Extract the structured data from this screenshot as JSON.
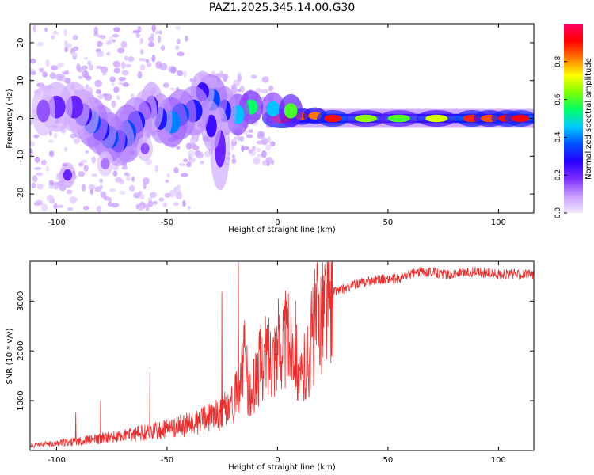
{
  "title": "PAZ1.2025.345.14.00.G30",
  "chart_data": [
    {
      "type": "heatmap",
      "panel": "spectrogram",
      "xlabel": "Height of straight line (km)",
      "ylabel": "Frequency (Hz)",
      "xlim": [
        -112,
        116
      ],
      "ylim": [
        -25,
        25
      ],
      "xticks": [
        -100,
        -50,
        0,
        50,
        100
      ],
      "yticks": [
        -20,
        -10,
        0,
        10,
        20
      ],
      "colorbar": {
        "label": "Normalized spectral amplitude",
        "range": [
          0,
          1
        ],
        "ticks": [
          0.0,
          0.2,
          0.4,
          0.6,
          0.8
        ],
        "tick_labels": [
          "0.0",
          "0.2",
          "0.4",
          "0.6",
          "0.8"
        ],
        "colormap": [
          "#f4e9ff",
          "#c79bff",
          "#7a2cff",
          "#2600ff",
          "#0050ff",
          "#00c8ff",
          "#00ff6a",
          "#7dff00",
          "#ffff00",
          "#ff7a00",
          "#ff0000",
          "#ff0066"
        ]
      },
      "blobs": [
        {
          "x": 2,
          "y": 0,
          "w": 5,
          "h": 1.2,
          "v": 0.95
        },
        {
          "x": 11,
          "y": 0.5,
          "w": 3,
          "h": 1.0,
          "v": 0.85
        },
        {
          "x": 17,
          "y": 0.7,
          "w": 3,
          "h": 1.0,
          "v": 0.82
        },
        {
          "x": 25,
          "y": 0,
          "w": 4,
          "h": 1.0,
          "v": 0.9
        },
        {
          "x": 40,
          "y": 0,
          "w": 5,
          "h": 1.0,
          "v": 0.65
        },
        {
          "x": 55,
          "y": 0,
          "w": 5,
          "h": 1.0,
          "v": 0.6
        },
        {
          "x": 72,
          "y": 0,
          "w": 5,
          "h": 1.0,
          "v": 0.7
        },
        {
          "x": 88,
          "y": 0,
          "w": 4,
          "h": 1.0,
          "v": 0.88
        },
        {
          "x": 96,
          "y": 0,
          "w": 4,
          "h": 1.0,
          "v": 0.85
        },
        {
          "x": 104,
          "y": 0,
          "w": 4,
          "h": 1.0,
          "v": 0.9
        },
        {
          "x": 110,
          "y": 0,
          "w": 4,
          "h": 1.0,
          "v": 0.92
        },
        {
          "x": -2,
          "y": 2.5,
          "w": 3,
          "h": 2.0,
          "v": 0.45
        },
        {
          "x": 6,
          "y": 2,
          "w": 3,
          "h": 2.0,
          "v": 0.6
        },
        {
          "x": -12,
          "y": 3,
          "w": 3,
          "h": 2.0,
          "v": 0.55
        },
        {
          "x": -18,
          "y": 1,
          "w": 3,
          "h": 2.5,
          "v": 0.45
        },
        {
          "x": -24,
          "y": 2,
          "w": 3,
          "h": 3.0,
          "v": 0.3
        },
        {
          "x": -30,
          "y": 5,
          "w": 4,
          "h": 3.0,
          "v": 0.35
        },
        {
          "x": -34,
          "y": 7,
          "w": 3,
          "h": 2.5,
          "v": 0.25
        },
        {
          "x": -26,
          "y": -8,
          "w": 2.5,
          "h": 5.0,
          "v": 0.2
        },
        {
          "x": -30,
          "y": -2,
          "w": 2.5,
          "h": 3.0,
          "v": 0.25
        },
        {
          "x": -38,
          "y": 2,
          "w": 4,
          "h": 3.0,
          "v": 0.3
        },
        {
          "x": -44,
          "y": 1,
          "w": 4,
          "h": 3.0,
          "v": 0.35
        },
        {
          "x": -48,
          "y": -1,
          "w": 4,
          "h": 3.0,
          "v": 0.4
        },
        {
          "x": -53,
          "y": 0,
          "w": 3,
          "h": 3.0,
          "v": 0.3
        },
        {
          "x": -57,
          "y": 3,
          "w": 3,
          "h": 3.0,
          "v": 0.25
        },
        {
          "x": -60,
          "y": 2,
          "w": 3,
          "h": 2.5,
          "v": 0.2
        },
        {
          "x": -64,
          "y": -1,
          "w": 4,
          "h": 3.0,
          "v": 0.3
        },
        {
          "x": -68,
          "y": -4,
          "w": 4,
          "h": 3.5,
          "v": 0.35
        },
        {
          "x": -72,
          "y": -6,
          "w": 4,
          "h": 3.0,
          "v": 0.3
        },
        {
          "x": -76,
          "y": -5,
          "w": 4,
          "h": 3.0,
          "v": 0.35
        },
        {
          "x": -80,
          "y": -3,
          "w": 4,
          "h": 3.0,
          "v": 0.3
        },
        {
          "x": -84,
          "y": -1,
          "w": 4,
          "h": 3.0,
          "v": 0.35
        },
        {
          "x": -88,
          "y": 1,
          "w": 4,
          "h": 3.0,
          "v": 0.25
        },
        {
          "x": -92,
          "y": 3,
          "w": 4,
          "h": 3.0,
          "v": 0.2
        },
        {
          "x": -100,
          "y": 3,
          "w": 4,
          "h": 3.0,
          "v": 0.2
        },
        {
          "x": -106,
          "y": 2,
          "w": 3,
          "h": 3.0,
          "v": 0.15
        },
        {
          "x": -95,
          "y": -15,
          "w": 2,
          "h": 1.5,
          "v": 0.2
        },
        {
          "x": -78,
          "y": -12,
          "w": 2,
          "h": 1.5,
          "v": 0.12
        },
        {
          "x": -60,
          "y": -8,
          "w": 2,
          "h": 1.5,
          "v": 0.15
        }
      ]
    },
    {
      "type": "line",
      "panel": "snr",
      "xlabel": "Height of straight line (km)",
      "ylabel": "SNR (10 * v/v)",
      "xlim": [
        -112,
        116
      ],
      "ylim": [
        0,
        3800
      ],
      "xticks": [
        -100,
        -50,
        0,
        50,
        100
      ],
      "yticks": [
        1000,
        2000,
        3000
      ],
      "series": [
        {
          "name": "SNR",
          "color": "#e83030",
          "x": [
            -112,
            -100,
            -90,
            -80,
            -70,
            -60,
            -50,
            -45,
            -40,
            -35,
            -30,
            -25,
            -20,
            -17,
            -15,
            -12,
            -10,
            -8,
            -5,
            -2,
            0,
            2,
            5,
            8,
            10,
            12,
            14,
            16,
            18,
            20,
            25,
            30,
            35,
            40,
            45,
            50,
            55,
            60,
            65,
            70,
            75,
            80,
            90,
            100,
            110,
            116
          ],
          "y": [
            100,
            150,
            200,
            250,
            300,
            380,
            450,
            500,
            550,
            600,
            700,
            800,
            1000,
            1400,
            1900,
            1000,
            1500,
            1800,
            2000,
            2100,
            2200,
            2300,
            2300,
            2400,
            1300,
            1700,
            2000,
            2500,
            2800,
            3000,
            3200,
            3250,
            3350,
            3400,
            3450,
            3450,
            3450,
            3550,
            3600,
            3600,
            3550,
            3550,
            3600,
            3550,
            3550,
            3550
          ]
        }
      ]
    }
  ]
}
